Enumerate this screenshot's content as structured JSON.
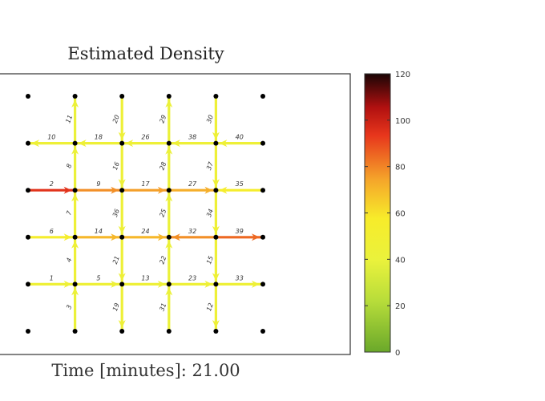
{
  "title": "Estimated Density",
  "time_label": "Time [minutes]:",
  "time_value": "21.00",
  "colorbar": {
    "ticks": [
      "0",
      "20",
      "40",
      "60",
      "80",
      "100",
      "120"
    ],
    "min": 0,
    "max": 120
  },
  "grid": {
    "columns": 6,
    "rows": 6
  },
  "links": [
    {
      "id": "1",
      "orient": "h",
      "row": 4,
      "col": 0,
      "density": 45,
      "dir": "+"
    },
    {
      "id": "2",
      "orient": "h",
      "row": 2,
      "col": 0,
      "density": 95,
      "dir": "+"
    },
    {
      "id": "3",
      "orient": "v",
      "row": 4,
      "col": 1,
      "density": 42,
      "dir": "-"
    },
    {
      "id": "4",
      "orient": "v",
      "row": 3,
      "col": 1,
      "density": 45,
      "dir": "-"
    },
    {
      "id": "5",
      "orient": "h",
      "row": 4,
      "col": 1,
      "density": 45,
      "dir": "+"
    },
    {
      "id": "6",
      "orient": "h",
      "row": 3,
      "col": 0,
      "density": 55,
      "dir": "+"
    },
    {
      "id": "7",
      "orient": "v",
      "row": 2,
      "col": 1,
      "density": 45,
      "dir": "-"
    },
    {
      "id": "8",
      "orient": "v",
      "row": 1,
      "col": 1,
      "density": 42,
      "dir": "-"
    },
    {
      "id": "9",
      "orient": "h",
      "row": 2,
      "col": 1,
      "density": 78,
      "dir": "+"
    },
    {
      "id": "10",
      "orient": "h",
      "row": 1,
      "col": 0,
      "density": 45,
      "dir": "-"
    },
    {
      "id": "11",
      "orient": "v",
      "row": 0,
      "col": 1,
      "density": 42,
      "dir": "-"
    },
    {
      "id": "14",
      "orient": "h",
      "row": 3,
      "col": 1,
      "density": 70,
      "dir": "+"
    },
    {
      "id": "18",
      "orient": "h",
      "row": 1,
      "col": 1,
      "density": 45,
      "dir": "-"
    },
    {
      "id": "19",
      "orient": "v",
      "row": 4,
      "col": 2,
      "density": 45,
      "dir": "+"
    },
    {
      "id": "13",
      "orient": "h",
      "row": 4,
      "col": 2,
      "density": 45,
      "dir": "+"
    },
    {
      "id": "17",
      "orient": "h",
      "row": 2,
      "col": 2,
      "density": 75,
      "dir": "+"
    },
    {
      "id": "24",
      "orient": "h",
      "row": 3,
      "col": 2,
      "density": 70,
      "dir": "+"
    },
    {
      "id": "26",
      "orient": "h",
      "row": 1,
      "col": 2,
      "density": 45,
      "dir": "-"
    },
    {
      "id": "20",
      "orient": "v",
      "row": 0,
      "col": 2,
      "density": 45,
      "dir": "+"
    },
    {
      "id": "16",
      "orient": "v",
      "row": 1,
      "col": 2,
      "density": 45,
      "dir": "+"
    },
    {
      "id": "36",
      "orient": "v",
      "row": 2,
      "col": 2,
      "density": 45,
      "dir": "+"
    },
    {
      "id": "21",
      "orient": "v",
      "row": 3,
      "col": 2,
      "density": 45,
      "dir": "+"
    },
    {
      "id": "23",
      "orient": "h",
      "row": 4,
      "col": 3,
      "density": 45,
      "dir": "+"
    },
    {
      "id": "27",
      "orient": "h",
      "row": 2,
      "col": 3,
      "density": 72,
      "dir": "+"
    },
    {
      "id": "32",
      "orient": "h",
      "row": 3,
      "col": 3,
      "density": 78,
      "dir": "-"
    },
    {
      "id": "38",
      "orient": "h",
      "row": 1,
      "col": 3,
      "density": 45,
      "dir": "-"
    },
    {
      "id": "29",
      "orient": "v",
      "row": 0,
      "col": 3,
      "density": 42,
      "dir": "-"
    },
    {
      "id": "28",
      "orient": "v",
      "row": 1,
      "col": 3,
      "density": 42,
      "dir": "-"
    },
    {
      "id": "25",
      "orient": "v",
      "row": 2,
      "col": 3,
      "density": 42,
      "dir": "-"
    },
    {
      "id": "22",
      "orient": "v",
      "row": 3,
      "col": 3,
      "density": 42,
      "dir": "-"
    },
    {
      "id": "31",
      "orient": "v",
      "row": 4,
      "col": 3,
      "density": 42,
      "dir": "-"
    },
    {
      "id": "33",
      "orient": "h",
      "row": 4,
      "col": 4,
      "density": 45,
      "dir": "+"
    },
    {
      "id": "35",
      "orient": "h",
      "row": 2,
      "col": 4,
      "density": 55,
      "dir": "-"
    },
    {
      "id": "39",
      "orient": "h",
      "row": 3,
      "col": 4,
      "density": 85,
      "dir": "+"
    },
    {
      "id": "40",
      "orient": "h",
      "row": 1,
      "col": 4,
      "density": 45,
      "dir": "-"
    },
    {
      "id": "30",
      "orient": "v",
      "row": 0,
      "col": 4,
      "density": 45,
      "dir": "+"
    },
    {
      "id": "37",
      "orient": "v",
      "row": 1,
      "col": 4,
      "density": 45,
      "dir": "+"
    },
    {
      "id": "34",
      "orient": "v",
      "row": 2,
      "col": 4,
      "density": 45,
      "dir": "+"
    },
    {
      "id": "15",
      "orient": "v",
      "row": 3,
      "col": 4,
      "density": 45,
      "dir": "+"
    },
    {
      "id": "12",
      "orient": "v",
      "row": 4,
      "col": 4,
      "density": 45,
      "dir": "+"
    }
  ]
}
